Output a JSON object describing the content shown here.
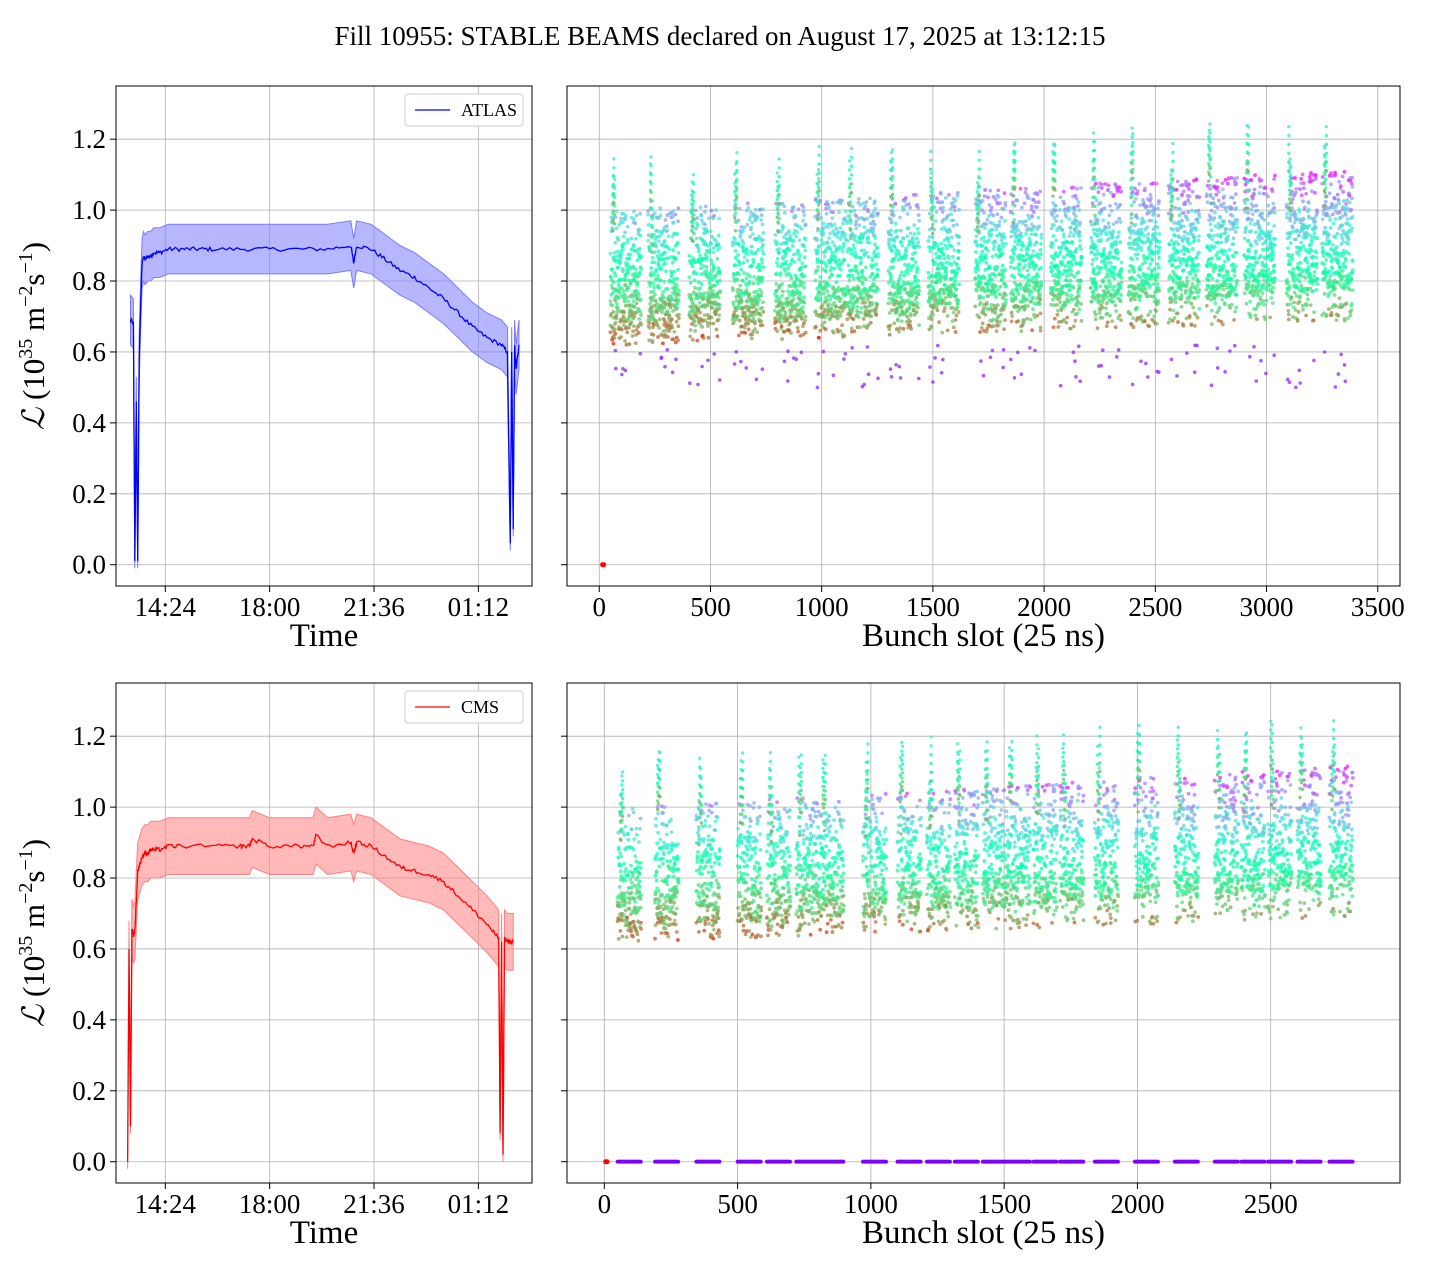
{
  "figure": {
    "title": "Fill 10955: STABLE BEAMS declared on August 17, 2025 at 13:12:15"
  },
  "chart_data": [
    {
      "type": "line",
      "id": "atlas-time",
      "legend": "ATLAS",
      "color": "#0000ff",
      "band_color": "#7b7bff",
      "xlabel": "Time",
      "ylabel_symbol": "ℒ",
      "ylabel_open": " (10",
      "ylabel_exp1": "35",
      "ylabel_mid": " m",
      "ylabel_exp2": "−2",
      "ylabel_mid2": "s",
      "ylabel_exp3": "−1",
      "ylabel_close": ")",
      "x_ticks": [
        "14:24",
        "18:00",
        "21:36",
        "01:12"
      ],
      "x_tick_hours": [
        14.4,
        18.0,
        21.6,
        25.2
      ],
      "xlim_hours": [
        12.7,
        27.05
      ],
      "ylim": [
        -0.06,
        1.35
      ],
      "y_ticks": [
        "0.0",
        "0.2",
        "0.4",
        "0.6",
        "0.8",
        "1.0",
        "1.2"
      ],
      "y_tick_values": [
        0,
        0.2,
        0.4,
        0.6,
        0.8,
        1.0,
        1.2
      ],
      "grid": true,
      "legend_position": "upper right",
      "series": {
        "x_hours": [
          13.2,
          13.3,
          13.35,
          13.4,
          13.45,
          13.5,
          13.55,
          13.6,
          13.65,
          13.7,
          13.8,
          13.9,
          14.0,
          14.2,
          14.5,
          15.0,
          15.5,
          16.0,
          17.0,
          18.0,
          19.0,
          20.0,
          20.8,
          20.9,
          21.0,
          21.5,
          22.0,
          22.5,
          23.0,
          23.5,
          24.0,
          24.5,
          25.0,
          25.5,
          26.0,
          26.2,
          26.3,
          26.35,
          26.4,
          26.45,
          26.5,
          26.6
        ],
        "y": [
          0.69,
          0.68,
          0.01,
          0.46,
          0.01,
          0.58,
          0.73,
          0.85,
          0.87,
          0.86,
          0.87,
          0.87,
          0.88,
          0.88,
          0.89,
          0.89,
          0.89,
          0.89,
          0.89,
          0.89,
          0.89,
          0.89,
          0.9,
          0.85,
          0.9,
          0.89,
          0.86,
          0.83,
          0.81,
          0.78,
          0.75,
          0.71,
          0.67,
          0.64,
          0.62,
          0.6,
          0.06,
          0.6,
          0.1,
          0.62,
          0.55,
          0.62
        ],
        "band_half_width": 0.07
      }
    },
    {
      "type": "scatter",
      "id": "atlas-bunch",
      "xlabel": "Bunch slot (25 ns)",
      "x_ticks": [
        "0",
        "500",
        "1000",
        "1500",
        "2000",
        "2500",
        "3000",
        "3500"
      ],
      "x_tick_values": [
        0,
        500,
        1000,
        1500,
        2000,
        2500,
        3000,
        3500
      ],
      "xlim": [
        -145,
        3600
      ],
      "ylim": [
        -0.06,
        1.35
      ],
      "grid": true,
      "colormap": "rainbow",
      "bunch_range": [
        50,
        3430
      ],
      "train_starts": [
        50,
        220,
        405,
        600,
        790,
        970,
        1115,
        1300,
        1480,
        1690,
        1850,
        2030,
        2210,
        2380,
        2560,
        2730,
        2900,
        3090,
        3250
      ],
      "train_length": 140,
      "low_y": [
        0.58,
        0.6,
        0.62,
        0.65,
        0.68
      ],
      "high_y": [
        0.92,
        0.98,
        1.05,
        1.12,
        1.2
      ],
      "outlier_points": [
        [
          15,
          0.0
        ],
        [
          20,
          0.0
        ]
      ]
    },
    {
      "type": "line",
      "id": "cms-time",
      "legend": "CMS",
      "color": "#ff0000",
      "band_color": "#ff8080",
      "xlabel": "Time",
      "ylabel_symbol": "ℒ",
      "ylabel_open": " (10",
      "ylabel_exp1": "35",
      "ylabel_mid": " m",
      "ylabel_exp2": "−2",
      "ylabel_mid2": "s",
      "ylabel_exp3": "−1",
      "ylabel_close": ")",
      "x_ticks": [
        "14:24",
        "18:00",
        "21:36",
        "01:12"
      ],
      "x_tick_hours": [
        14.4,
        18.0,
        21.6,
        25.2
      ],
      "xlim_hours": [
        12.7,
        27.05
      ],
      "ylim": [
        -0.06,
        1.35
      ],
      "y_ticks": [
        "0.0",
        "0.2",
        "0.4",
        "0.6",
        "0.8",
        "1.0",
        "1.2"
      ],
      "y_tick_values": [
        0,
        0.2,
        0.4,
        0.6,
        0.8,
        1.0,
        1.2
      ],
      "grid": true,
      "legend_position": "upper right",
      "series": {
        "x_hours": [
          13.1,
          13.15,
          13.2,
          13.25,
          13.3,
          13.35,
          13.45,
          13.6,
          13.7,
          13.8,
          13.9,
          14.0,
          14.2,
          14.5,
          15.0,
          16.0,
          17.0,
          17.3,
          17.4,
          18.0,
          19.0,
          19.5,
          19.6,
          20.0,
          20.8,
          20.9,
          21.0,
          21.5,
          22.0,
          22.5,
          23.0,
          23.5,
          24.0,
          24.5,
          25.0,
          25.5,
          25.8,
          25.9,
          25.95,
          26.0,
          26.05,
          26.1,
          26.2,
          26.4
        ],
        "y": [
          0.0,
          0.6,
          0.1,
          0.66,
          0.64,
          0.65,
          0.82,
          0.86,
          0.87,
          0.87,
          0.88,
          0.88,
          0.88,
          0.89,
          0.89,
          0.89,
          0.89,
          0.89,
          0.91,
          0.89,
          0.89,
          0.89,
          0.92,
          0.89,
          0.9,
          0.87,
          0.9,
          0.89,
          0.86,
          0.83,
          0.82,
          0.81,
          0.79,
          0.75,
          0.71,
          0.67,
          0.64,
          0.63,
          0.08,
          0.62,
          0.02,
          0.63,
          0.62,
          0.62
        ],
        "band_half_width": 0.08
      }
    },
    {
      "type": "scatter",
      "id": "cms-bunch",
      "xlabel": "Bunch slot (25 ns)",
      "x_ticks": [
        "0",
        "500",
        "1000",
        "1500",
        "2000",
        "2500"
      ],
      "x_tick_values": [
        0,
        500,
        1000,
        1500,
        2000,
        2500
      ],
      "xlim": [
        -140,
        2985
      ],
      "ylim": [
        -0.06,
        1.35
      ],
      "grid": true,
      "colormap": "rainbow",
      "bunch_range": [
        50,
        2840
      ],
      "train_starts": [
        50,
        190,
        345,
        500,
        610,
        720,
        810,
        970,
        1100,
        1210,
        1315,
        1420,
        1510,
        1610,
        1710,
        1840,
        1990,
        2140,
        2290,
        2390,
        2490,
        2600,
        2720
      ],
      "train_length": 90,
      "low_y": [
        0.58,
        0.6,
        0.62,
        0.65,
        0.68
      ],
      "high_y": [
        0.98,
        1.04,
        1.1,
        1.16,
        1.24
      ],
      "zero_row_y": 0.0,
      "outlier_points": [
        [
          5,
          0.0
        ],
        [
          10,
          0.0
        ]
      ]
    }
  ]
}
